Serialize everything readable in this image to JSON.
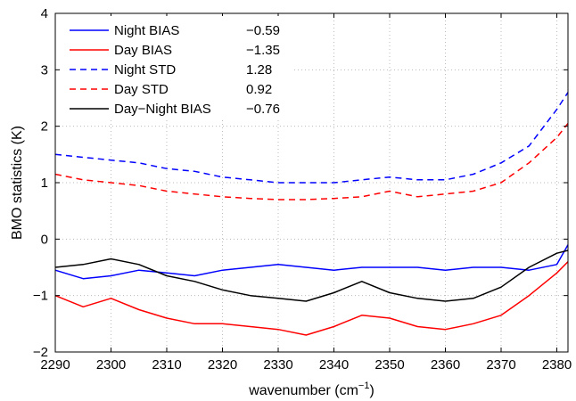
{
  "chart_data": {
    "type": "line",
    "xlabel": "wavenumber (cm",
    "xlabel_sup": "−1",
    "xlabel_end": ")",
    "ylabel": "BMO statistics (K)",
    "xlim": [
      2290,
      2382
    ],
    "ylim": [
      -2,
      4
    ],
    "xticks": [
      "2290",
      "2300",
      "2310",
      "2320",
      "2330",
      "2340",
      "2350",
      "2360",
      "2370",
      "2380"
    ],
    "yticks": [
      "−2",
      "−1",
      "0",
      "1",
      "2",
      "3",
      "4"
    ],
    "grid": true,
    "legend_position": "top-left",
    "series": [
      {
        "name": "Night BIAS",
        "stat": "−0.59",
        "color": "#0000ff",
        "dash": "solid",
        "x": [
          2290,
          2295,
          2300,
          2305,
          2310,
          2315,
          2320,
          2325,
          2330,
          2335,
          2340,
          2345,
          2350,
          2355,
          2360,
          2365,
          2370,
          2375,
          2380,
          2382
        ],
        "y": [
          -0.55,
          -0.7,
          -0.65,
          -0.55,
          -0.6,
          -0.65,
          -0.55,
          -0.5,
          -0.45,
          -0.5,
          -0.55,
          -0.5,
          -0.5,
          -0.5,
          -0.55,
          -0.5,
          -0.5,
          -0.55,
          -0.45,
          -0.1
        ]
      },
      {
        "name": "Day BIAS",
        "stat": "−1.35",
        "color": "#ff0000",
        "dash": "solid",
        "x": [
          2290,
          2295,
          2300,
          2305,
          2310,
          2315,
          2320,
          2325,
          2330,
          2335,
          2340,
          2345,
          2350,
          2355,
          2360,
          2365,
          2370,
          2375,
          2380,
          2382
        ],
        "y": [
          -1.0,
          -1.2,
          -1.05,
          -1.25,
          -1.4,
          -1.5,
          -1.5,
          -1.55,
          -1.6,
          -1.7,
          -1.55,
          -1.35,
          -1.4,
          -1.55,
          -1.6,
          -1.5,
          -1.35,
          -1.0,
          -0.6,
          -0.4
        ]
      },
      {
        "name": "Night STD",
        "stat": "1.28",
        "color": "#0000ff",
        "dash": "dashed",
        "x": [
          2290,
          2295,
          2300,
          2305,
          2310,
          2315,
          2320,
          2325,
          2330,
          2335,
          2340,
          2345,
          2350,
          2355,
          2360,
          2365,
          2370,
          2375,
          2380,
          2382
        ],
        "y": [
          1.5,
          1.45,
          1.4,
          1.35,
          1.25,
          1.2,
          1.1,
          1.05,
          1.0,
          1.0,
          1.0,
          1.05,
          1.1,
          1.05,
          1.05,
          1.15,
          1.35,
          1.65,
          2.3,
          2.6
        ]
      },
      {
        "name": "Day STD",
        "stat": "0.92",
        "color": "#ff0000",
        "dash": "dashed",
        "x": [
          2290,
          2295,
          2300,
          2305,
          2310,
          2315,
          2320,
          2325,
          2330,
          2335,
          2340,
          2345,
          2350,
          2355,
          2360,
          2365,
          2370,
          2375,
          2380,
          2382
        ],
        "y": [
          1.15,
          1.05,
          1.0,
          0.95,
          0.85,
          0.8,
          0.75,
          0.72,
          0.7,
          0.7,
          0.72,
          0.75,
          0.85,
          0.75,
          0.8,
          0.85,
          1.0,
          1.35,
          1.8,
          2.05
        ]
      },
      {
        "name": "Day−Night BIAS",
        "stat": "−0.76",
        "color": "#000000",
        "dash": "solid",
        "x": [
          2290,
          2295,
          2300,
          2305,
          2310,
          2315,
          2320,
          2325,
          2330,
          2335,
          2340,
          2345,
          2350,
          2355,
          2360,
          2365,
          2370,
          2375,
          2380,
          2382
        ],
        "y": [
          -0.5,
          -0.45,
          -0.35,
          -0.45,
          -0.65,
          -0.75,
          -0.9,
          -1.0,
          -1.05,
          -1.1,
          -0.95,
          -0.75,
          -0.95,
          -1.05,
          -1.1,
          -1.05,
          -0.85,
          -0.5,
          -0.25,
          -0.2
        ]
      }
    ]
  }
}
